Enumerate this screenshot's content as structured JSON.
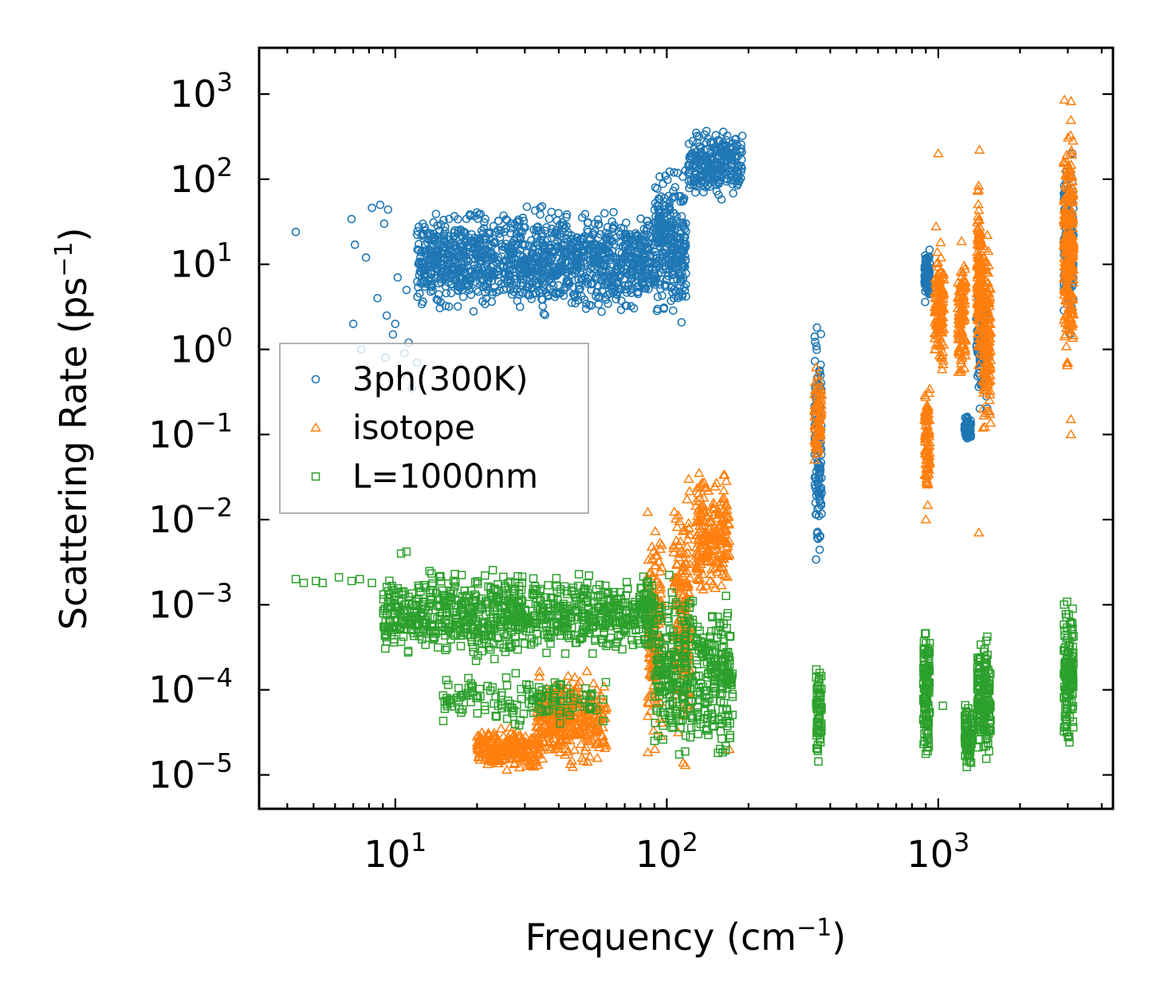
{
  "chart_data": {
    "type": "scatter",
    "title": "",
    "xlabel": {
      "text": "Frequency (cm",
      "unit_exp": "−1",
      "close": ")"
    },
    "ylabel": {
      "text": "Scattering Rate (ps",
      "unit_exp": "−1",
      "close": ")"
    },
    "xscale": "log",
    "yscale": "log",
    "xlim": [
      3.15,
      4400
    ],
    "ylim": [
      4e-06,
      3500
    ],
    "grid": false,
    "legend_position": "center-left",
    "x_ticks": [
      {
        "value": 10,
        "base": "10",
        "exp": "1"
      },
      {
        "value": 100,
        "base": "10",
        "exp": "2"
      },
      {
        "value": 1000,
        "base": "10",
        "exp": "3"
      }
    ],
    "y_ticks": [
      {
        "value": 1e-05,
        "base": "10",
        "exp": "−5"
      },
      {
        "value": 0.0001,
        "base": "10",
        "exp": "−4"
      },
      {
        "value": 0.001,
        "base": "10",
        "exp": "−3"
      },
      {
        "value": 0.01,
        "base": "10",
        "exp": "−2"
      },
      {
        "value": 0.1,
        "base": "10",
        "exp": "−1"
      },
      {
        "value": 1,
        "base": "10",
        "exp": "0"
      },
      {
        "value": 10,
        "base": "10",
        "exp": "1"
      },
      {
        "value": 100,
        "base": "10",
        "exp": "2"
      },
      {
        "value": 1000,
        "base": "10",
        "exp": "3"
      }
    ],
    "series": [
      {
        "name": "3ph(300K)",
        "marker": "circle",
        "color": "#1f77b4",
        "groups": [
          {
            "x": [
              12,
              90
            ],
            "y": [
              2,
              60
            ],
            "n": 1300
          },
          {
            "x": [
              90,
              118
            ],
            "y": [
              1.5,
              200
            ],
            "n": 300
          },
          {
            "x": [
              120,
              190
            ],
            "y": [
              50,
              500
            ],
            "n": 260
          },
          {
            "x": [
              350,
              372
            ],
            "y": [
              0.0015,
              3
            ],
            "n": 140
          },
          {
            "x": [
              890,
              930
            ],
            "y": [
              3,
              18
            ],
            "n": 90
          },
          {
            "x": [
              1250,
              1320
            ],
            "y": [
              0.08,
              0.18
            ],
            "n": 60
          },
          {
            "x": [
              1380,
              1520
            ],
            "y": [
              0.1,
              12
            ],
            "n": 90
          },
          {
            "x": [
              2900,
              3150
            ],
            "y": [
              1,
              350
            ],
            "n": 160
          }
        ],
        "points": [
          [
            4.3,
            24
          ],
          [
            6.9,
            34
          ],
          [
            7.1,
            17
          ],
          [
            7.8,
            12
          ],
          [
            8.2,
            46
          ],
          [
            8.8,
            50
          ],
          [
            9.1,
            30
          ],
          [
            9.4,
            44
          ],
          [
            10.2,
            7
          ],
          [
            11,
            5
          ],
          [
            8.6,
            4
          ],
          [
            9.3,
            2.5
          ],
          [
            7,
            2
          ],
          [
            10,
            2
          ],
          [
            9.8,
            1.5
          ],
          [
            11.2,
            1.2
          ],
          [
            7.5,
            1
          ],
          [
            12,
            0.7
          ],
          [
            10.5,
            0.5
          ],
          [
            11.5,
            0.35
          ],
          [
            9.2,
            0.8
          ],
          [
            10.8,
            0.9
          ]
        ]
      },
      {
        "name": "isotope",
        "marker": "triangle",
        "color": "#ff7f0e",
        "groups": [
          {
            "x": [
              20,
              35
            ],
            "y": [
              1e-05,
              4e-05
            ],
            "n": 260
          },
          {
            "x": [
              33,
              60
            ],
            "y": [
              1e-05,
              0.0002
            ],
            "n": 320
          },
          {
            "x": [
              85,
              96
            ],
            "y": [
              1e-05,
              0.02
            ],
            "n": 150
          },
          {
            "x": [
              106,
              122
            ],
            "y": [
              1e-05,
              0.05
            ],
            "n": 180
          },
          {
            "x": [
              128,
              170
            ],
            "y": [
              0.0008,
              0.05
            ],
            "n": 220
          },
          {
            "x": [
              350,
              372
            ],
            "y": [
              0.03,
              1
            ],
            "n": 70
          },
          {
            "x": [
              890,
              930
            ],
            "y": [
              0.01,
              0.9
            ],
            "n": 90
          },
          {
            "x": [
              970,
              1050
            ],
            "y": [
              0.3,
              30
            ],
            "n": 140
          },
          {
            "x": [
              1180,
              1260
            ],
            "y": [
              0.3,
              20
            ],
            "n": 110
          },
          {
            "x": [
              1390,
              1440
            ],
            "y": [
              0.3,
              200
            ],
            "n": 140
          },
          {
            "x": [
              1460,
              1560
            ],
            "y": [
              0.05,
              40
            ],
            "n": 160
          },
          {
            "x": [
              2900,
              3150
            ],
            "y": [
              0.3,
              1300
            ],
            "n": 260
          }
        ],
        "points": [
          [
            1000,
            200
          ],
          [
            1420,
            220
          ],
          [
            1410,
            0.007
          ],
          [
            900,
            0.01
          ],
          [
            3080,
            0.1
          ],
          [
            3080,
            0.15
          ],
          [
            170,
            2e-05
          ]
        ]
      },
      {
        "name": "L=1000nm",
        "marker": "square",
        "color": "#2ca02c",
        "groups": [
          {
            "x": [
              9,
              90
            ],
            "y": [
              0.0002,
              0.003
            ],
            "n": 900
          },
          {
            "x": [
              15,
              60
            ],
            "y": [
              3e-05,
              0.0002
            ],
            "n": 140
          },
          {
            "x": [
              90,
              125
            ],
            "y": [
              1e-05,
              0.003
            ],
            "n": 220
          },
          {
            "x": [
              128,
              175
            ],
            "y": [
              1e-05,
              0.002
            ],
            "n": 200
          },
          {
            "x": [
              355,
              372
            ],
            "y": [
              1e-05,
              0.0003
            ],
            "n": 60
          },
          {
            "x": [
              880,
              930
            ],
            "y": [
              1e-05,
              0.0009
            ],
            "n": 110
          },
          {
            "x": [
              1250,
              1340
            ],
            "y": [
              1e-05,
              0.0001
            ],
            "n": 70
          },
          {
            "x": [
              1390,
              1440
            ],
            "y": [
              1e-05,
              0.0006
            ],
            "n": 80
          },
          {
            "x": [
              1460,
              1560
            ],
            "y": [
              1e-05,
              0.0006
            ],
            "n": 90
          },
          {
            "x": [
              2900,
              3150
            ],
            "y": [
              1e-05,
              0.0023
            ],
            "n": 140
          }
        ],
        "points": [
          [
            4.3,
            0.002
          ],
          [
            4.6,
            0.0018
          ],
          [
            5.1,
            0.0019
          ],
          [
            5.4,
            0.0018
          ],
          [
            6.2,
            0.0021
          ],
          [
            6.9,
            0.0019
          ],
          [
            7.4,
            0.002
          ],
          [
            8.2,
            0.0018
          ],
          [
            10.5,
            0.004
          ],
          [
            11,
            0.0042
          ],
          [
            12,
            0.0009
          ],
          [
            13,
            0.0006
          ],
          [
            1040,
            6.5e-05
          ]
        ]
      }
    ]
  }
}
